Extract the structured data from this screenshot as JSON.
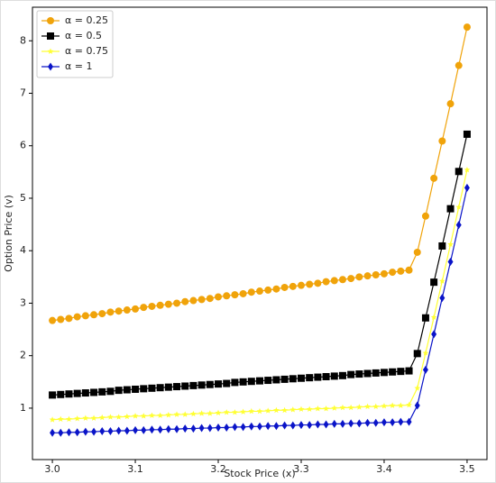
{
  "chart_data": {
    "type": "line",
    "x_label": "Stock Price (x)",
    "y_label": "Option Price (v)",
    "x": [
      3.0,
      3.01,
      3.02,
      3.03,
      3.04,
      3.05,
      3.06,
      3.07,
      3.08,
      3.09,
      3.1,
      3.11,
      3.12,
      3.13,
      3.14,
      3.15,
      3.16,
      3.17,
      3.18,
      3.19,
      3.2,
      3.21,
      3.22,
      3.23,
      3.24,
      3.25,
      3.26,
      3.27,
      3.28,
      3.29,
      3.3,
      3.31,
      3.32,
      3.33,
      3.34,
      3.35,
      3.36,
      3.37,
      3.38,
      3.39,
      3.4,
      3.41,
      3.42,
      3.43,
      3.44,
      3.45,
      3.46,
      3.47,
      3.48,
      3.49,
      3.5
    ],
    "series": [
      {
        "name": "α = 0.25",
        "color": "#f0a30a",
        "marker": "circle",
        "values": [
          2.67,
          2.69,
          2.71,
          2.74,
          2.76,
          2.78,
          2.8,
          2.83,
          2.85,
          2.87,
          2.89,
          2.92,
          2.94,
          2.96,
          2.98,
          3.0,
          3.03,
          3.05,
          3.07,
          3.09,
          3.12,
          3.14,
          3.16,
          3.18,
          3.21,
          3.23,
          3.25,
          3.27,
          3.3,
          3.32,
          3.34,
          3.36,
          3.38,
          3.41,
          3.43,
          3.45,
          3.47,
          3.5,
          3.52,
          3.54,
          3.56,
          3.59,
          3.61,
          3.63,
          3.97,
          4.66,
          5.38,
          6.09,
          6.8,
          7.53,
          8.26
        ]
      },
      {
        "name": "α = 0.5",
        "color": "#000000",
        "marker": "square",
        "values": [
          1.25,
          1.26,
          1.27,
          1.28,
          1.29,
          1.3,
          1.31,
          1.32,
          1.34,
          1.35,
          1.36,
          1.37,
          1.38,
          1.39,
          1.4,
          1.41,
          1.42,
          1.43,
          1.44,
          1.45,
          1.46,
          1.47,
          1.49,
          1.5,
          1.51,
          1.52,
          1.53,
          1.54,
          1.55,
          1.56,
          1.57,
          1.58,
          1.59,
          1.6,
          1.61,
          1.62,
          1.64,
          1.65,
          1.66,
          1.67,
          1.68,
          1.69,
          1.7,
          1.71,
          2.04,
          2.72,
          3.4,
          4.09,
          4.8,
          5.51,
          6.22
        ]
      },
      {
        "name": "α = 0.75",
        "color": "#ffff33",
        "marker": "star",
        "values": [
          0.78,
          0.79,
          0.79,
          0.8,
          0.81,
          0.81,
          0.82,
          0.83,
          0.83,
          0.84,
          0.85,
          0.85,
          0.86,
          0.86,
          0.87,
          0.88,
          0.88,
          0.89,
          0.9,
          0.9,
          0.91,
          0.92,
          0.92,
          0.93,
          0.94,
          0.94,
          0.95,
          0.96,
          0.96,
          0.97,
          0.98,
          0.98,
          0.99,
          0.99,
          1.0,
          1.01,
          1.01,
          1.02,
          1.03,
          1.03,
          1.04,
          1.05,
          1.05,
          1.06,
          1.38,
          2.05,
          2.73,
          3.42,
          4.12,
          4.83,
          5.54
        ]
      },
      {
        "name": "α = 1",
        "color": "#0a14c8",
        "marker": "diamond",
        "values": [
          0.53,
          0.53,
          0.54,
          0.54,
          0.55,
          0.55,
          0.56,
          0.56,
          0.57,
          0.57,
          0.58,
          0.58,
          0.59,
          0.59,
          0.6,
          0.6,
          0.61,
          0.61,
          0.62,
          0.62,
          0.63,
          0.63,
          0.64,
          0.64,
          0.65,
          0.65,
          0.66,
          0.66,
          0.67,
          0.67,
          0.68,
          0.68,
          0.69,
          0.69,
          0.7,
          0.7,
          0.71,
          0.71,
          0.72,
          0.72,
          0.73,
          0.73,
          0.74,
          0.74,
          1.05,
          1.73,
          2.41,
          3.1,
          3.79,
          4.49,
          5.2
        ]
      }
    ],
    "xlim": [
      2.976,
      3.524
    ],
    "ylim": [
      0.02,
      8.64
    ],
    "xticks": [
      {
        "value": 3.0,
        "label": "3.0"
      },
      3.1,
      3.2,
      3.3,
      3.4,
      3.5
    ],
    "yticks": [
      1,
      2,
      3,
      4,
      5,
      6,
      7,
      8
    ],
    "grid": false,
    "legend": "upper left"
  }
}
